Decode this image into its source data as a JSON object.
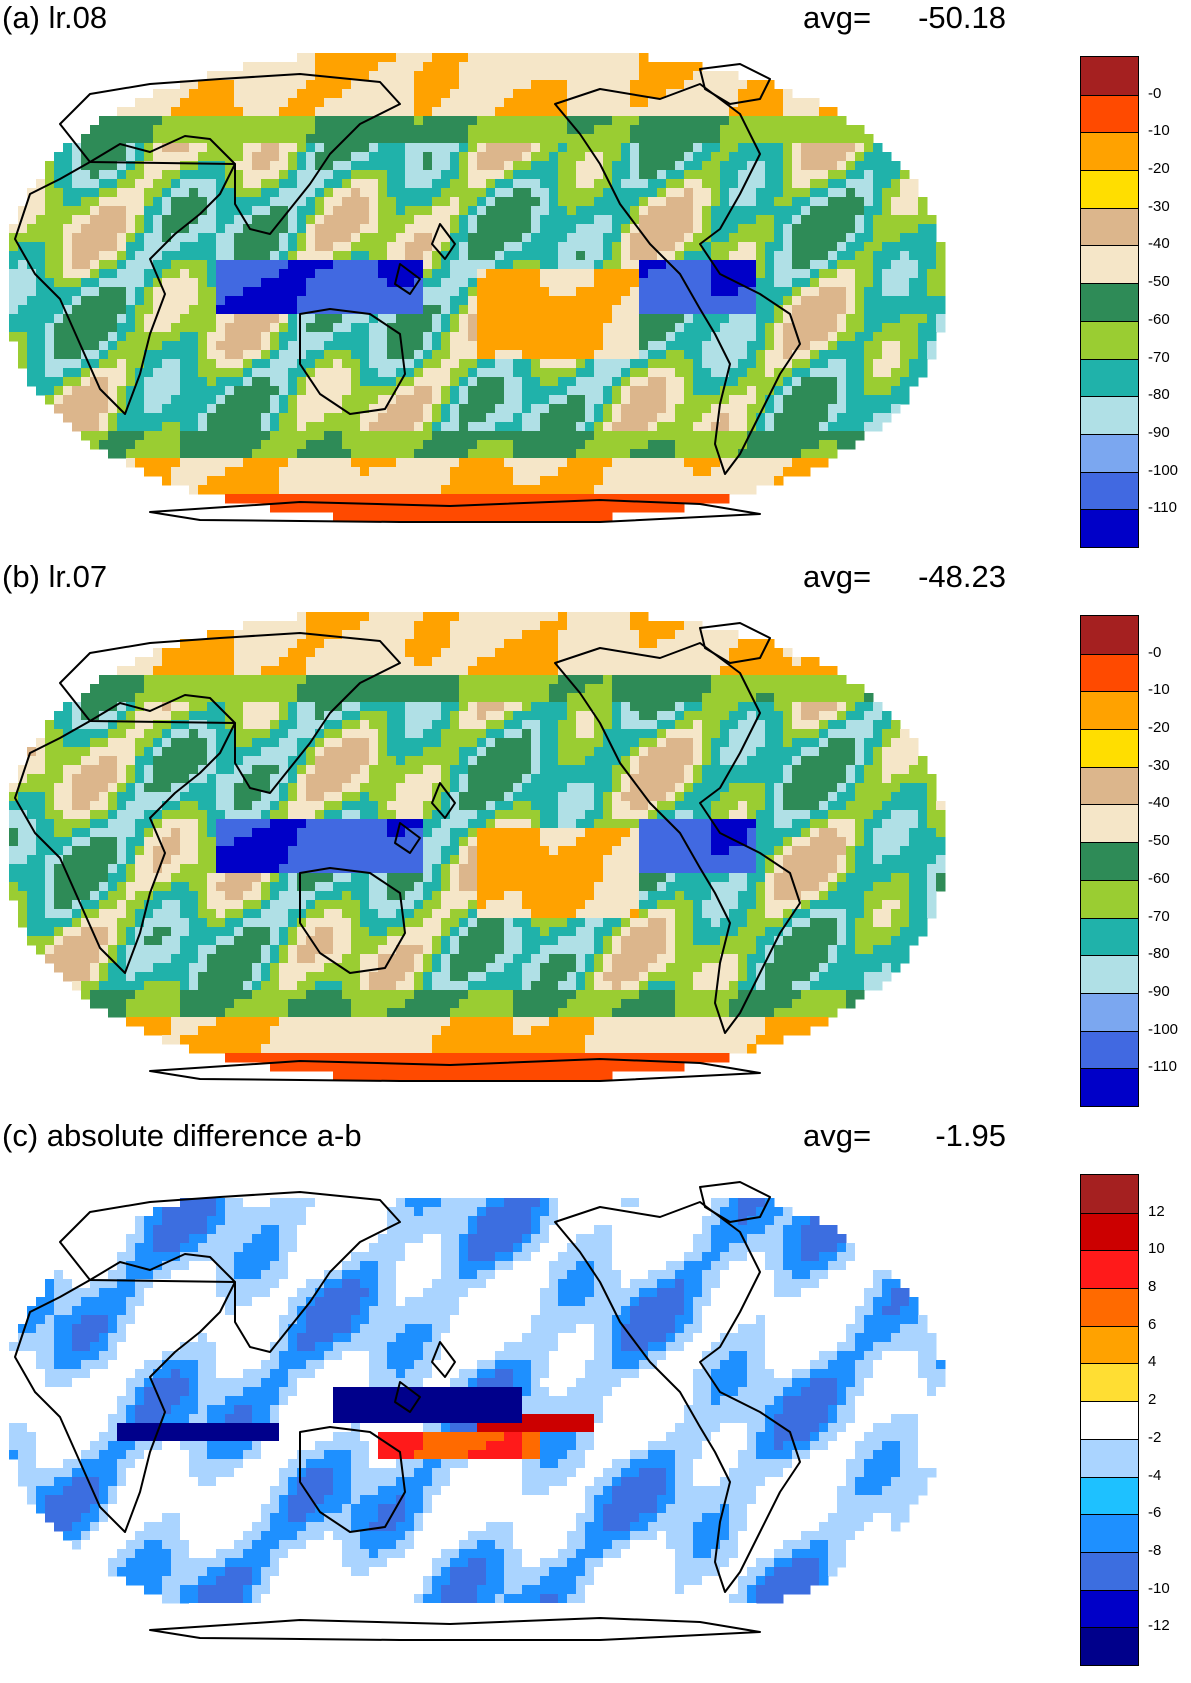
{
  "panels": [
    {
      "title": "(a) lr.08",
      "avg_label": "avg=",
      "avg_value": "-50.18",
      "colorbar": {
        "labels": [
          "-0",
          "-10",
          "-20",
          "-30",
          "-40",
          "-50",
          "-60",
          "-70",
          "-80",
          "-90",
          "-100",
          "-110"
        ],
        "colors": [
          "#a52020",
          "#ff4a00",
          "#ffa200",
          "#ffde00",
          "#dcb68c",
          "#f5e6c8",
          "#2e8b57",
          "#9acd32",
          "#20b2aa",
          "#b0e0e6",
          "#7ba7f0",
          "#4169e1",
          "#0000c8"
        ]
      },
      "field_colors": {
        "land_high": "#ff4a00",
        "land_mid": "#ffa200",
        "ocean_base": "#9acd32",
        "ocean_band": "#2e8b57",
        "trop_warm": "#ffa200",
        "deep_low": "#0000c8",
        "low": "#4169e1",
        "mid_low": "#20b2aa",
        "light": "#b0e0e6",
        "neutral": "#dcb68c",
        "pale": "#f5e6c8",
        "polar": "#ff4a00"
      }
    },
    {
      "title": "(b) lr.07",
      "avg_label": "avg=",
      "avg_value": "-48.23",
      "colorbar": {
        "labels": [
          "-0",
          "-10",
          "-20",
          "-30",
          "-40",
          "-50",
          "-60",
          "-70",
          "-80",
          "-90",
          "-100",
          "-110"
        ],
        "colors": [
          "#a52020",
          "#ff4a00",
          "#ffa200",
          "#ffde00",
          "#dcb68c",
          "#f5e6c8",
          "#2e8b57",
          "#9acd32",
          "#20b2aa",
          "#b0e0e6",
          "#7ba7f0",
          "#4169e1",
          "#0000c8"
        ]
      },
      "field_colors": {
        "land_high": "#ff4a00",
        "land_mid": "#ffa200",
        "ocean_base": "#9acd32",
        "ocean_band": "#2e8b57",
        "trop_warm": "#ffa200",
        "deep_low": "#0000c8",
        "low": "#4169e1",
        "mid_low": "#20b2aa",
        "light": "#b0e0e6",
        "neutral": "#dcb68c",
        "pale": "#f5e6c8",
        "polar": "#ff4a00"
      }
    },
    {
      "title": "(c) absolute difference a-b",
      "avg_label": "avg=",
      "avg_value": "-1.95",
      "colorbar": {
        "labels": [
          "12",
          "10",
          "8",
          "6",
          "4",
          "2",
          "-2",
          "-4",
          "-6",
          "-8",
          "-10",
          "-12"
        ],
        "colors": [
          "#a52020",
          "#cc0000",
          "#ff1a1a",
          "#ff6a00",
          "#ffa200",
          "#ffde33",
          "#ffffff",
          "#aad4ff",
          "#1ec1ff",
          "#1e90ff",
          "#3c6ee0",
          "#0000c8",
          "#00008b"
        ]
      },
      "field_colors": {
        "land_high": "#ffffff",
        "land_mid": "#ffffff",
        "ocean_base": "#ffffff",
        "ocean_band": "#aad4ff",
        "trop_warm": "#ff6a00",
        "deep_low": "#00008b",
        "low": "#3c6ee0",
        "mid_low": "#1e90ff",
        "light": "#aad4ff",
        "neutral": "#ffffff",
        "pale": "#ffffff",
        "polar": "#ffffff"
      }
    }
  ]
}
